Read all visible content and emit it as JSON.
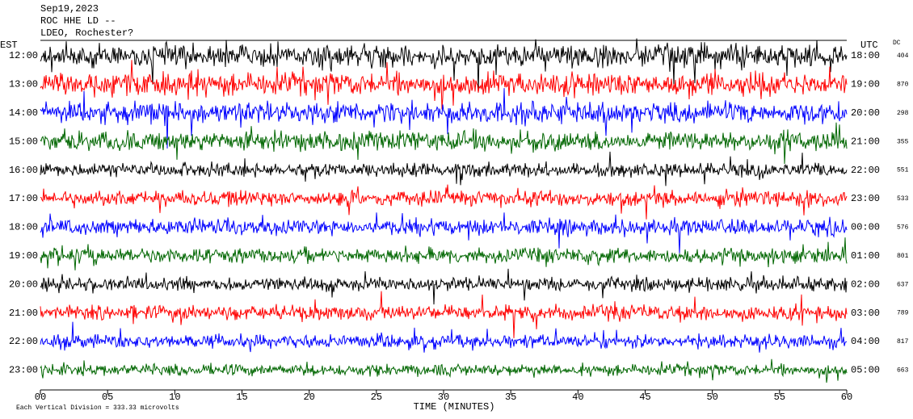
{
  "chart_data": {
    "type": "helicorder",
    "header": [
      "Sep19,2023",
      "ROC HHE LD --",
      "LDEO, Rochester?"
    ],
    "left_zone": "EST",
    "right_zone": "UTC",
    "dc_label": "DC",
    "xlabel": "TIME (MINUTES)",
    "scale_note": "Each Vertical Division =  333.33 microvolts",
    "xlim": [
      0,
      60
    ],
    "xticks": [
      {
        "value": 0,
        "label": "00"
      },
      {
        "value": 5,
        "label": "05"
      },
      10,
      15,
      20,
      25,
      30,
      35,
      40,
      45,
      50,
      55,
      60
    ],
    "rows": [
      {
        "est": "12:00",
        "utc": "18:00",
        "dc": 404,
        "color": "#000000",
        "amplitude": 1.2
      },
      {
        "est": "13:00",
        "utc": "19:00",
        "dc": 870,
        "color": "#ff0000",
        "amplitude": 1.2
      },
      {
        "est": "14:00",
        "utc": "20:00",
        "dc": 298,
        "color": "#0000ff",
        "amplitude": 1.1
      },
      {
        "est": "15:00",
        "utc": "21:00",
        "dc": 355,
        "color": "#006600",
        "amplitude": 1.0
      },
      {
        "est": "16:00",
        "utc": "22:00",
        "dc": 551,
        "color": "#000000",
        "amplitude": 0.7
      },
      {
        "est": "17:00",
        "utc": "23:00",
        "dc": 533,
        "color": "#ff0000",
        "amplitude": 0.8
      },
      {
        "est": "18:00",
        "utc": "00:00",
        "dc": 576,
        "color": "#0000ff",
        "amplitude": 0.8
      },
      {
        "est": "19:00",
        "utc": "01:00",
        "dc": 801,
        "color": "#006600",
        "amplitude": 0.8
      },
      {
        "est": "20:00",
        "utc": "02:00",
        "dc": 637,
        "color": "#000000",
        "amplitude": 0.7
      },
      {
        "est": "21:00",
        "utc": "03:00",
        "dc": 789,
        "color": "#ff0000",
        "amplitude": 0.8
      },
      {
        "est": "22:00",
        "utc": "04:00",
        "dc": 817,
        "color": "#0000ff",
        "amplitude": 0.7
      },
      {
        "est": "23:00",
        "utc": "05:00",
        "dc": 663,
        "color": "#006600",
        "amplitude": 0.6
      }
    ]
  }
}
